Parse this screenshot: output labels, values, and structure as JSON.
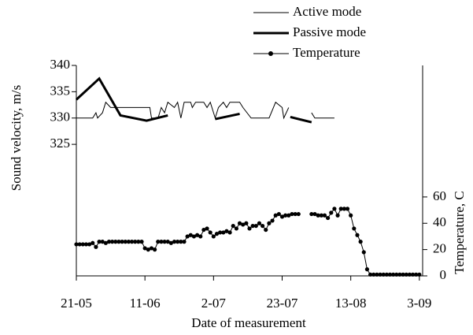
{
  "chart_data": {
    "type": "line",
    "x_label": "Date of measurement",
    "y_label": "Sound velocity, m/s",
    "y2_label": "Temperature, C",
    "xlim": [
      0,
      106
    ],
    "ylim": [
      300,
      340
    ],
    "y2lim": [
      0,
      160
    ],
    "xticks": [
      {
        "value": 0,
        "label": "21-05"
      },
      {
        "value": 21,
        "label": "11-06"
      },
      {
        "value": 42,
        "label": "2-07"
      },
      {
        "value": 63,
        "label": "23-07"
      },
      {
        "value": 84,
        "label": "13-08"
      },
      {
        "value": 105,
        "label": "3-09"
      }
    ],
    "yticks": [
      325,
      330,
      335,
      340
    ],
    "y2ticks": [
      0,
      20,
      40,
      60
    ],
    "legend": "top-right",
    "series": [
      {
        "name": "Active mode",
        "color": "#000000",
        "line_width": 1,
        "x": [
          0,
          5,
          6,
          6.5,
          8,
          9,
          10.5,
          22.5,
          23,
          25,
          26,
          27,
          28,
          30,
          31,
          32,
          33,
          35,
          35.5,
          36.5,
          39,
          40,
          41,
          42.5,
          43.5,
          45,
          46,
          47,
          50,
          51,
          53.5,
          59,
          61,
          63,
          63.5,
          65,
          68,
          72,
          73,
          79
        ],
        "values": [
          330,
          330,
          331,
          330,
          331,
          333,
          332,
          332,
          330,
          330,
          332,
          331,
          333,
          332,
          333,
          330,
          333,
          333,
          332,
          333,
          333,
          332,
          333,
          330,
          332,
          333,
          332,
          333,
          333,
          332,
          330,
          330,
          333,
          332,
          330,
          332,
          null,
          331,
          330,
          330
        ]
      },
      {
        "name": "Passive mode",
        "color": "#000000",
        "line_width": 3,
        "x": [
          0,
          7,
          13.5,
          21.5,
          28,
          35,
          42.5,
          50,
          58,
          65.5,
          72
        ],
        "values": [
          333.5,
          337.5,
          330.5,
          329.5,
          330.5,
          null,
          329.8,
          330.8,
          null,
          330.2,
          329.2
        ]
      },
      {
        "name": "Temperature",
        "color": "#000000",
        "line_width": 1,
        "axis": "y2",
        "marker": "circle",
        "x": [
          0,
          1,
          2,
          3,
          4,
          5,
          6,
          7,
          8,
          9,
          10,
          11,
          12,
          13,
          14,
          15,
          16,
          17,
          18,
          19,
          20,
          21,
          22,
          23,
          24,
          25,
          26,
          27,
          28,
          29,
          30,
          31,
          32,
          33,
          34,
          35,
          36,
          37,
          38,
          39,
          40,
          41,
          42,
          43,
          44,
          45,
          46,
          47,
          48,
          49,
          50,
          51,
          52,
          53,
          54,
          55,
          56,
          57,
          58,
          59,
          60,
          61,
          62,
          63,
          64,
          65,
          66,
          67,
          68,
          69,
          70,
          71,
          72,
          73,
          74,
          75,
          76,
          77,
          78,
          79,
          80,
          81,
          82,
          83,
          84,
          85,
          86,
          87,
          88,
          89,
          90,
          91,
          92,
          93,
          94,
          95,
          96,
          97,
          98,
          99,
          100,
          101,
          102,
          103,
          104,
          105
        ],
        "values": [
          24,
          24,
          24,
          24,
          24,
          25,
          22,
          26,
          26,
          25,
          26,
          26,
          26,
          26,
          26,
          26,
          26,
          26,
          26,
          26,
          26,
          21,
          20,
          21,
          20,
          26,
          26,
          26,
          26,
          25,
          26,
          26,
          26,
          26,
          30,
          31,
          30,
          31,
          30,
          35,
          36,
          33,
          30,
          32,
          33,
          33,
          34,
          33,
          38,
          36,
          40,
          39,
          40,
          36,
          38,
          38,
          40,
          38,
          35,
          40,
          42,
          46,
          47,
          45,
          46,
          46,
          47,
          47,
          47,
          null,
          null,
          null,
          47,
          47,
          46,
          46,
          46,
          44,
          48,
          51,
          46,
          51,
          51,
          51,
          46,
          36,
          31,
          26,
          18,
          5,
          1,
          1,
          1,
          1,
          1,
          1,
          1,
          1,
          1,
          1,
          1,
          1,
          1,
          1,
          1,
          1
        ]
      }
    ]
  }
}
